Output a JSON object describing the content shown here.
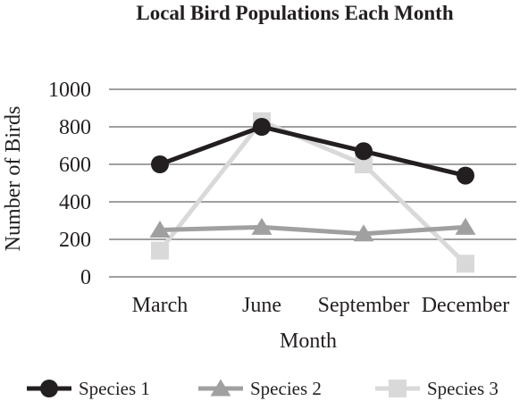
{
  "chart_data": {
    "type": "line",
    "title": "Local Bird Populations Each Month",
    "xlabel": "Month",
    "ylabel": "Number of Birds",
    "categories": [
      "March",
      "June",
      "September",
      "December"
    ],
    "ylim": [
      0,
      1000
    ],
    "yticks": [
      0,
      200,
      400,
      600,
      800,
      1000
    ],
    "grid": true,
    "legend_position": "bottom",
    "series": [
      {
        "name": "Species 1",
        "values": [
          600,
          800,
          670,
          540
        ],
        "color": "#231f20",
        "marker": "circle"
      },
      {
        "name": "Species 2",
        "values": [
          250,
          265,
          230,
          265
        ],
        "color": "#a0a0a0",
        "marker": "triangle"
      },
      {
        "name": "Species 3",
        "values": [
          140,
          830,
          600,
          70
        ],
        "color": "#d9d9d9",
        "marker": "square"
      }
    ]
  }
}
